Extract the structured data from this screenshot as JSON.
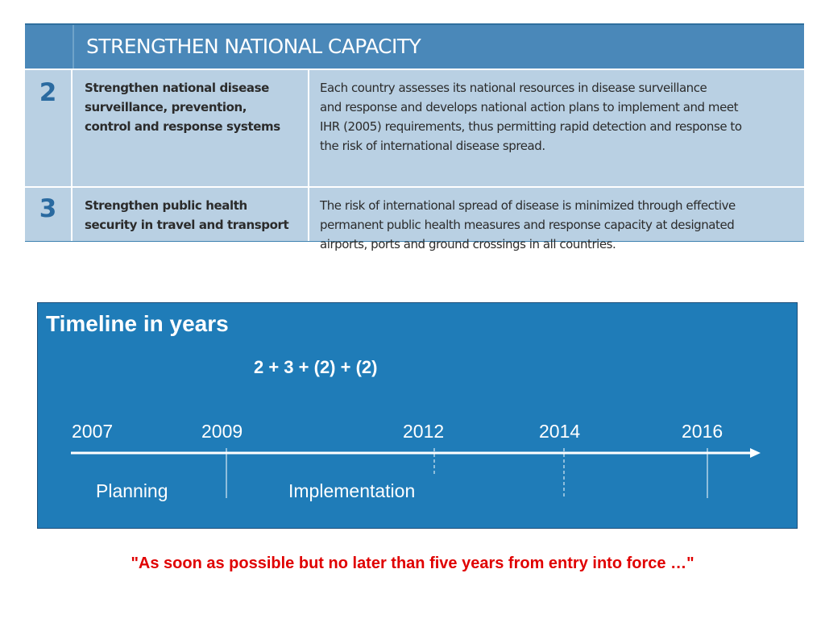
{
  "table": {
    "header": "STRENGTHEN NATIONAL CAPACITY",
    "rows": [
      {
        "number": "2",
        "goal": [
          "Strengthen national disease",
          "surveillance, prevention,",
          "control and response systems"
        ],
        "description": [
          "Each country assesses its national resources in disease surveillance",
          "and response and develops national action plans to implement and meet",
          "IHR (2005) requirements, thus permitting rapid detection and response to",
          "the risk of international disease spread."
        ]
      },
      {
        "number": "3",
        "goal": [
          "Strengthen public health",
          "security in travel and transport"
        ],
        "description": [
          "The risk of international spread of disease is minimized through effective",
          "permanent public health measures and response capacity at designated",
          "airports, ports and ground crossings in all countries."
        ]
      }
    ]
  },
  "timeline": {
    "title": "Timeline in years",
    "formula": "2 + 3 + (2) + (2)",
    "years": [
      "2007",
      "2009",
      "2012",
      "2014",
      "2016"
    ],
    "phases": [
      "Planning",
      "Implementation"
    ]
  },
  "quote": "\"As soon as possible but no later than five years from entry into force …\"",
  "colors": {
    "table_header": "#4a88b9",
    "table_row": "#b9d0e3",
    "number": "#2a6aa0",
    "timeline_bg": "#1f7cb8",
    "quote": "#e00000"
  }
}
